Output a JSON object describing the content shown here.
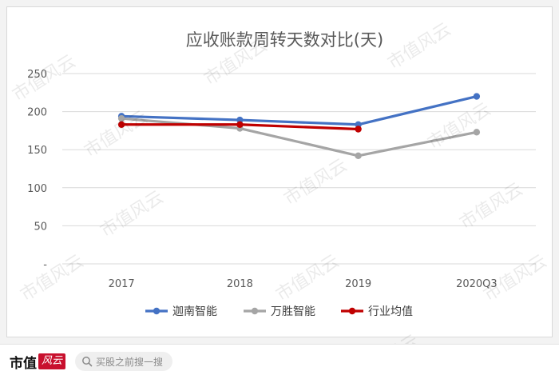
{
  "chart_data": {
    "type": "line",
    "title": "应收账款周转天数对比(天)",
    "categories": [
      "2017",
      "2018",
      "2019",
      "2020Q3"
    ],
    "ylim": [
      0,
      250
    ],
    "yticks": [
      "-",
      "50",
      "100",
      "150",
      "200",
      "250"
    ],
    "grid": true,
    "legend": "bottom",
    "series": [
      {
        "name": "迦南智能",
        "color": "#4472c4",
        "values": [
          194,
          189,
          183,
          220
        ]
      },
      {
        "name": "万胜智能",
        "color": "#a5a5a5",
        "values": [
          191,
          178,
          142,
          173
        ]
      },
      {
        "name": "行业均值",
        "color": "#c00000",
        "values": [
          183,
          183,
          177,
          null
        ]
      }
    ]
  },
  "watermark": "市值风云",
  "footer": {
    "brand_text": "市值",
    "brand_seal": "风云",
    "search_placeholder": "买股之前搜一搜"
  }
}
